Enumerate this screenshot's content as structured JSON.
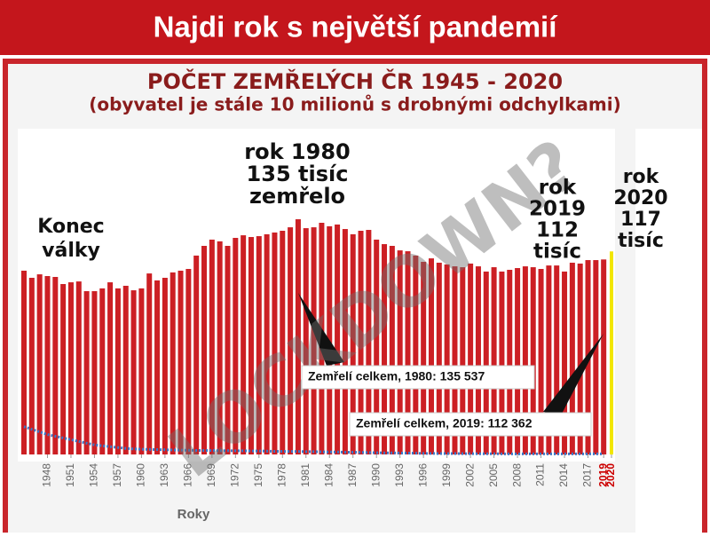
{
  "header": {
    "title": "Najdi rok s největší pandemií"
  },
  "chart_data": {
    "type": "bar",
    "title": "POČET ZEMŘELÝCH ČR 1945 - 2020",
    "subtitle": "(obyvatel je stále 10 milionů s drobnými odchylkami)",
    "x_label": "Roky",
    "x": [
      1945,
      1946,
      1947,
      1948,
      1949,
      1950,
      1951,
      1952,
      1953,
      1954,
      1955,
      1956,
      1957,
      1958,
      1959,
      1960,
      1961,
      1962,
      1963,
      1964,
      1965,
      1966,
      1967,
      1968,
      1969,
      1970,
      1971,
      1972,
      1973,
      1974,
      1975,
      1976,
      1977,
      1978,
      1979,
      1980,
      1981,
      1982,
      1983,
      1984,
      1985,
      1986,
      1987,
      1988,
      1989,
      1990,
      1991,
      1992,
      1993,
      1994,
      1995,
      1996,
      1997,
      1998,
      1999,
      2000,
      2001,
      2002,
      2003,
      2004,
      2005,
      2006,
      2007,
      2008,
      2009,
      2010,
      2011,
      2012,
      2013,
      2014,
      2015,
      2016,
      2017,
      2018,
      2019,
      2020
    ],
    "series": [
      {
        "type": "bar",
        "color": "#cc1f24",
        "values": [
          105900,
          101800,
          103800,
          102800,
          102300,
          98200,
          99200,
          99700,
          94100,
          94100,
          95700,
          99200,
          95700,
          97200,
          94600,
          95700,
          104300,
          100300,
          101800,
          104900,
          105900,
          106900,
          114600,
          120200,
          123800,
          122800,
          120200,
          124800,
          126300,
          125300,
          125800,
          126900,
          127900,
          128900,
          130900,
          135537,
          130400,
          130900,
          133500,
          131500,
          132500,
          129900,
          126900,
          128900,
          129400,
          123800,
          121200,
          120200,
          117600,
          117100,
          114600,
          111000,
          113000,
          110500,
          109500,
          108400,
          107900,
          110000,
          108400,
          105400,
          107900,
          105400,
          106400,
          107400,
          108400,
          107900,
          106900,
          108900,
          108900,
          105400,
          110500,
          110000,
          112000,
          112000,
          112362,
          117000
        ]
      },
      {
        "type": "line",
        "color": "#3a78c8",
        "values": [
          16000,
          14500,
          13000,
          11500,
          10500,
          9500,
          8500,
          7500,
          6500,
          5500,
          5000,
          4500,
          4000,
          3500,
          3200,
          3000,
          2900,
          2800,
          2700,
          2600,
          2500,
          2400,
          2300,
          2300,
          2300,
          2200,
          2200,
          2100,
          2100,
          2000,
          2000,
          1900,
          1800,
          1800,
          1700,
          1700,
          1600,
          1600,
          1500,
          1400,
          1400,
          1300,
          1300,
          1200,
          1100,
          1000,
          900,
          900,
          800,
          800,
          700,
          600,
          600,
          500,
          500,
          500,
          450,
          450,
          400,
          400,
          400,
          350,
          350,
          350,
          300,
          300,
          300,
          300,
          300,
          300,
          300,
          300,
          300,
          300,
          300,
          null
        ]
      }
    ],
    "highlight": {
      "x": 2020,
      "color": "#f2e600"
    },
    "xlim": [
      1944.5,
      2020.5
    ],
    "ylim": [
      0,
      185000
    ],
    "xticks": [
      1948,
      1951,
      1954,
      1957,
      1960,
      1963,
      1966,
      1969,
      1972,
      1975,
      1978,
      1981,
      1984,
      1987,
      1990,
      1993,
      1996,
      1999,
      2002,
      2005,
      2008,
      2011,
      2014,
      2017,
      2019,
      2020
    ],
    "xtick_highlight": {
      "from": 2019,
      "color": "#cc0000"
    },
    "annotations": [
      {
        "lines": [
          "Konec",
          "války"
        ]
      },
      {
        "lines": [
          "rok 1980",
          "135 tisíc",
          "zemřelo"
        ]
      },
      {
        "lines": [
          "rok",
          "2019",
          "112",
          "tisíc"
        ]
      },
      {
        "lines": [
          "rok",
          "2020",
          "117",
          "tisíc"
        ]
      },
      {
        "lines": [
          "Zemřelí celkem, 1980: 135 537"
        ]
      },
      {
        "lines": [
          "Zemřelí celkem, 2019: 112 362"
        ]
      }
    ],
    "watermark": "LOCKDOWN?"
  }
}
